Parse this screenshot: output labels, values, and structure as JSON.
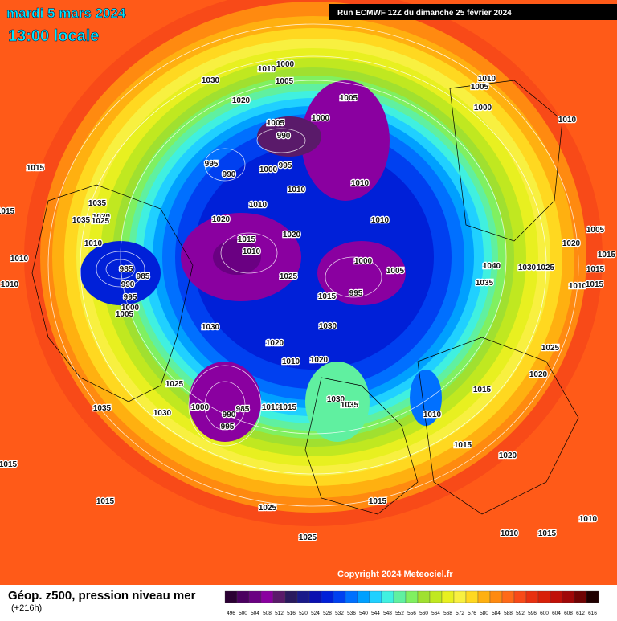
{
  "header": {
    "date": "mardi 5 mars 2024",
    "time": "13:00 locale",
    "run": "Run ECMWF 12Z du dimanche 25 février 2024"
  },
  "copyright": "Copyright 2024 Meteociel.fr",
  "footer": {
    "title": "Géop. z500, pression niveau mer",
    "lead": "(+216h)"
  },
  "legend": {
    "labels": [
      "496",
      "500",
      "504",
      "508",
      "512",
      "516",
      "520",
      "524",
      "528",
      "532",
      "536",
      "540",
      "544",
      "548",
      "552",
      "556",
      "560",
      "564",
      "568",
      "572",
      "576",
      "580",
      "584",
      "588",
      "592",
      "596",
      "600",
      "604",
      "608",
      "612",
      "616"
    ],
    "colors": [
      "#2b0033",
      "#4b0060",
      "#6a0082",
      "#8a00a0",
      "#5a1a6a",
      "#2a1a5e",
      "#1a1a8a",
      "#0a10b0",
      "#0020d8",
      "#0040f0",
      "#0070ff",
      "#00a0ff",
      "#20d0ff",
      "#40f0e0",
      "#60f0a0",
      "#80f060",
      "#a0e030",
      "#c0e820",
      "#e8f020",
      "#f8f040",
      "#ffd820",
      "#ffb010",
      "#ff8a10",
      "#ff6a18",
      "#f84a18",
      "#e83010",
      "#d82008",
      "#c01008",
      "#a00808",
      "#700404",
      "#200000"
    ]
  },
  "isobars": [
    "1000",
    "1010",
    "1005",
    "1030",
    "1020",
    "1005",
    "1000",
    "1005",
    "990",
    "995",
    "990",
    "995",
    "1000",
    "1010",
    "1010",
    "1010",
    "1010",
    "1020",
    "1020",
    "1015",
    "1010",
    "1000",
    "1005",
    "1025",
    "995",
    "1015",
    "1030",
    "1030",
    "1020",
    "1010",
    "1020",
    "1025",
    "1030",
    "1035",
    "1000",
    "990",
    "985",
    "995",
    "1010",
    "1015",
    "1030",
    "1035",
    "1010",
    "1015",
    "1015",
    "1020",
    "1015",
    "1015",
    "1025",
    "1015",
    "1025",
    "1010",
    "1015",
    "1010",
    "1015",
    "1035",
    "1035",
    "1030",
    "1025",
    "1010",
    "1010",
    "1010",
    "985",
    "985",
    "990",
    "995",
    "1000",
    "1005",
    "1010",
    "1005",
    "1000",
    "1010",
    "1005",
    "1020",
    "1015",
    "1015",
    "1010",
    "1015",
    "1040",
    "1030",
    "1025",
    "1035",
    "1025",
    "1020",
    "1015"
  ]
}
